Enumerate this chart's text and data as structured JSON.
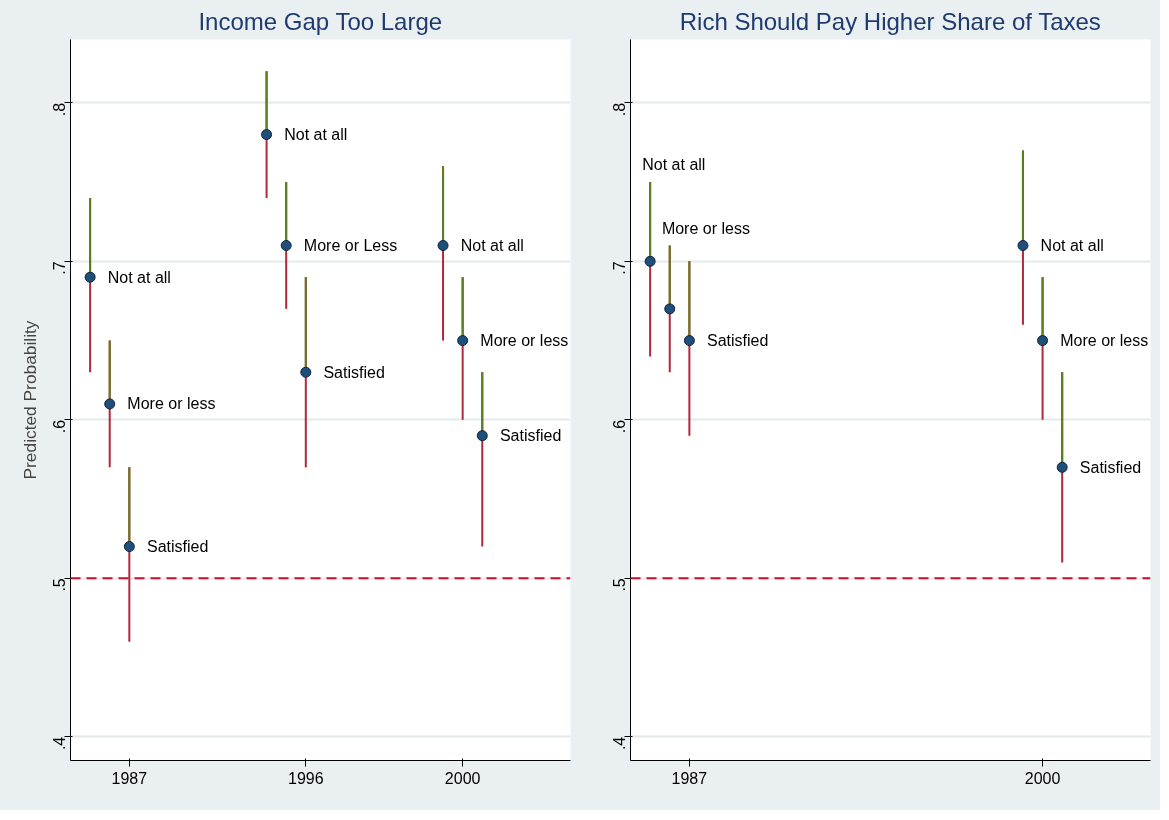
{
  "chart_data": [
    {
      "type": "scatter",
      "title": "Income Gap Too Large",
      "ylabel": "Predicted Probability",
      "categories": [
        null,
        null,
        "1987",
        null,
        null,
        null,
        null,
        null,
        null,
        null,
        null,
        "1996",
        null,
        null,
        null,
        null,
        null,
        null,
        null,
        "2000",
        null,
        null,
        null,
        null,
        null
      ],
      "ylim": [
        0.385,
        0.84
      ],
      "yticks": [
        {
          "value": 0.4,
          "label": ".4"
        },
        {
          "value": 0.5,
          "label": ".5"
        },
        {
          "value": 0.6,
          "label": ".6"
        },
        {
          "value": 0.7,
          "label": ".7"
        },
        {
          "value": 0.8,
          "label": ".8"
        }
      ],
      "grid": "y",
      "marker": "circle",
      "series": [
        {
          "color": "#1f4e79",
          "values": [
            0.69,
            0.61,
            0.52,
            null,
            null,
            null,
            null,
            null,
            null,
            0.78,
            0.71,
            0.63,
            null,
            null,
            null,
            null,
            null,
            null,
            0.71,
            0.65,
            0.59,
            null,
            null,
            null,
            null
          ],
          "errors": [
            [
              0.63,
              0.74
            ],
            [
              0.57,
              0.65
            ],
            [
              0.46,
              0.57
            ],
            null,
            null,
            null,
            null,
            null,
            null,
            [
              0.74,
              0.82
            ],
            [
              0.67,
              0.75
            ],
            [
              0.57,
              0.69
            ],
            null,
            null,
            null,
            null,
            null,
            null,
            [
              0.65,
              0.76
            ],
            [
              0.6,
              0.69
            ],
            [
              0.52,
              0.63
            ],
            null,
            null,
            null,
            null
          ],
          "value_labels": [
            "Not at all",
            "More or less",
            "Satisfied",
            null,
            null,
            null,
            null,
            null,
            null,
            "Not at all",
            "More or Less",
            "Satisfied",
            null,
            null,
            null,
            null,
            null,
            null,
            "Not at all",
            "More or less",
            "Satisfied",
            null,
            null,
            null,
            null
          ]
        }
      ],
      "ref_lines": [
        {
          "axis": "y",
          "value": 0.5,
          "color": "#c8102e",
          "line_style": "dashed"
        }
      ]
    },
    {
      "type": "scatter",
      "title": "Rich Should Pay Higher Share of Taxes",
      "categories": [
        null,
        null,
        "1987",
        null,
        null,
        null,
        null,
        null,
        null,
        null,
        null,
        null,
        null,
        null,
        null,
        null,
        null,
        null,
        null,
        null,
        "2000",
        null,
        null,
        null,
        null,
        null
      ],
      "ylim": [
        0.385,
        0.84
      ],
      "yticks": [
        {
          "value": 0.4,
          "label": ".4"
        },
        {
          "value": 0.5,
          "label": ".5"
        },
        {
          "value": 0.6,
          "label": ".6"
        },
        {
          "value": 0.7,
          "label": ".7"
        },
        {
          "value": 0.8,
          "label": ".8"
        }
      ],
      "grid": "y",
      "marker": "circle",
      "series": [
        {
          "color": "#1f4e79",
          "values": [
            0.7,
            0.67,
            0.65,
            null,
            null,
            null,
            null,
            null,
            null,
            null,
            null,
            null,
            null,
            null,
            null,
            null,
            null,
            null,
            null,
            0.71,
            0.65,
            0.57,
            null,
            null,
            null,
            null
          ],
          "errors": [
            [
              0.64,
              0.75
            ],
            [
              0.63,
              0.71
            ],
            [
              0.59,
              0.7
            ],
            null,
            null,
            null,
            null,
            null,
            null,
            null,
            null,
            null,
            null,
            null,
            null,
            null,
            null,
            null,
            null,
            [
              0.66,
              0.77
            ],
            [
              0.6,
              0.69
            ],
            [
              0.51,
              0.63
            ],
            null,
            null,
            null,
            null
          ],
          "value_labels": [
            "Not at all",
            "More or less",
            "Satisfied",
            null,
            null,
            null,
            null,
            null,
            null,
            null,
            null,
            null,
            null,
            null,
            null,
            null,
            null,
            null,
            null,
            "Not at all",
            "More or less",
            "Satisfied",
            null,
            null,
            null,
            null
          ]
        }
      ],
      "ref_lines": [
        {
          "axis": "y",
          "value": 0.5,
          "color": "#c8102e",
          "line_style": "dashed"
        }
      ]
    }
  ]
}
